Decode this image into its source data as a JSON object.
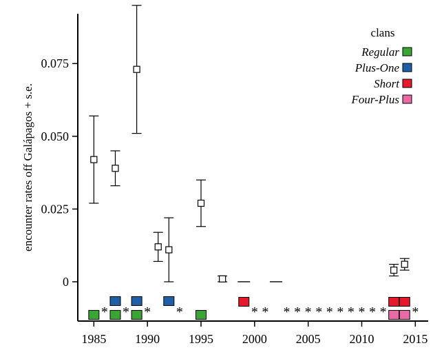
{
  "chart_data": {
    "type": "scatter",
    "ylabel": "encounter rates off Galápagos + s.e.",
    "xlabel": "",
    "xlim": [
      1983.5,
      2016.2
    ],
    "ylim": [
      -0.0135,
      0.094
    ],
    "x_ticks": [
      1985,
      1990,
      1995,
      2000,
      2005,
      2010,
      2015
    ],
    "y_ticks": [
      0,
      0.025,
      0.05,
      0.075
    ],
    "y_tick_labels": [
      "0",
      "0.025",
      "0.050",
      "0.075"
    ],
    "x_tick_labels": [
      "1985",
      "1990",
      "1995",
      "2000",
      "2005",
      "2010",
      "2015"
    ],
    "encounter_rates": [
      {
        "year": 1985,
        "rate": 0.042,
        "lower": 0.027,
        "upper": 0.057
      },
      {
        "year": 1987,
        "rate": 0.039,
        "lower": 0.033,
        "upper": 0.045
      },
      {
        "year": 1989,
        "rate": 0.073,
        "lower": 0.051,
        "upper": 0.095
      },
      {
        "year": 1991,
        "rate": 0.012,
        "lower": 0.007,
        "upper": 0.017
      },
      {
        "year": 1992,
        "rate": 0.011,
        "lower": 0.0,
        "upper": 0.022
      },
      {
        "year": 1995,
        "rate": 0.027,
        "lower": 0.019,
        "upper": 0.035
      },
      {
        "year": 1997,
        "rate": 0.001,
        "lower": 0.0,
        "upper": 0.002
      },
      {
        "year": 1999,
        "rate": 0.0,
        "lower": 0.0,
        "upper": 0.0
      },
      {
        "year": 2002,
        "rate": 0.0,
        "lower": 0.0,
        "upper": 0.0
      },
      {
        "year": 2013,
        "rate": 0.004,
        "lower": 0.002,
        "upper": 0.006
      },
      {
        "year": 2014,
        "rate": 0.006,
        "lower": 0.004,
        "upper": 0.008
      }
    ],
    "legend": {
      "title": "clans",
      "position": "top-right",
      "items": [
        {
          "label": "Regular",
          "color": "#3aa535"
        },
        {
          "label": "Plus-One",
          "color": "#1f5fa8"
        },
        {
          "label": "Short",
          "color": "#e41a2c"
        },
        {
          "label": "Four-Plus",
          "color": "#e86aa6"
        }
      ]
    },
    "clan_presence": [
      {
        "year": 1985,
        "clans": [
          "Regular"
        ]
      },
      {
        "year": 1987,
        "clans": [
          "Regular",
          "Plus-One"
        ]
      },
      {
        "year": 1989,
        "clans": [
          "Regular",
          "Plus-One"
        ]
      },
      {
        "year": 1992,
        "clans": [
          "Plus-One"
        ]
      },
      {
        "year": 1995,
        "clans": [
          "Regular"
        ]
      },
      {
        "year": 1999,
        "clans": [
          "Short"
        ]
      },
      {
        "year": 2013,
        "clans": [
          "Four-Plus",
          "Short"
        ]
      },
      {
        "year": 2014,
        "clans": [
          "Four-Plus",
          "Short"
        ]
      }
    ],
    "star_marker": "*",
    "starred_years": [
      1986,
      1988,
      1990,
      1993,
      2000,
      2001,
      2003,
      2004,
      2005,
      2006,
      2007,
      2008,
      2009,
      2010,
      2011,
      2012,
      2015
    ]
  }
}
